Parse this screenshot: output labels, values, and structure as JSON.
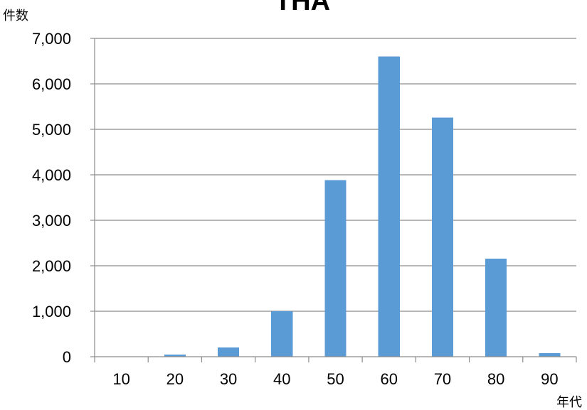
{
  "chart_data": {
    "type": "bar",
    "title": "THA",
    "ylabel": "件数",
    "xlabel": "年代",
    "categories": [
      "10",
      "20",
      "30",
      "40",
      "50",
      "60",
      "70",
      "80",
      "90"
    ],
    "values": [
      0,
      50,
      200,
      1000,
      3880,
      6600,
      5260,
      2160,
      80
    ],
    "ylim": [
      0,
      7000
    ],
    "yticks": [
      "0",
      "1,000",
      "2,000",
      "3,000",
      "4,000",
      "5,000",
      "6,000",
      "7,000"
    ],
    "grid": true,
    "legend": "none",
    "bar_color": "#5b9bd5"
  }
}
